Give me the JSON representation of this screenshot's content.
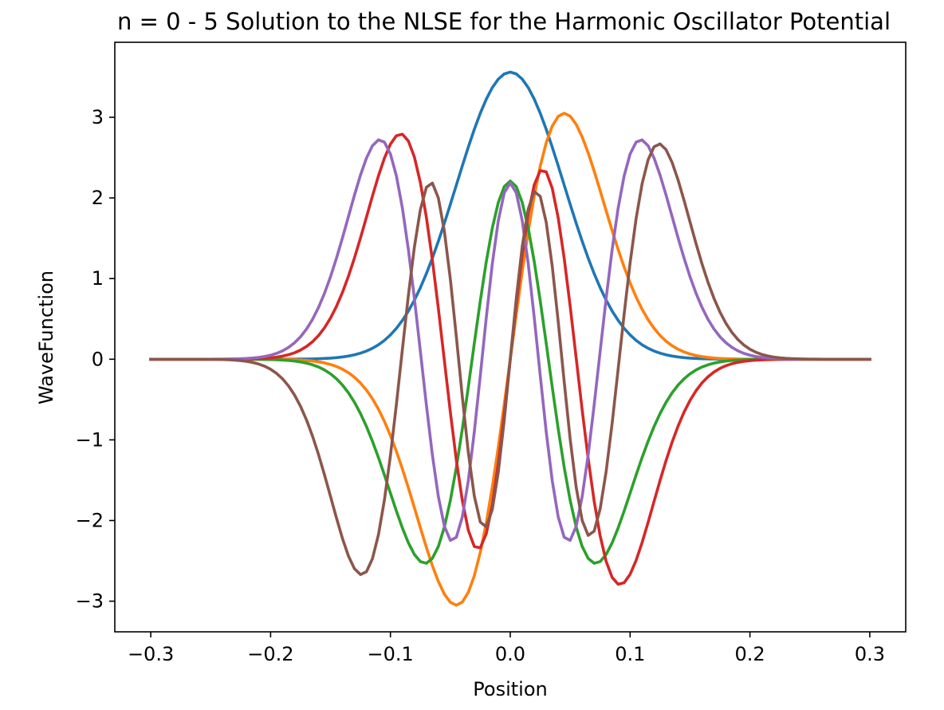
{
  "chart_data": {
    "type": "line",
    "title": "n = 0 - 5 Solution to the NLSE for the Harmonic Oscillator Potential",
    "xlabel": "Position",
    "ylabel": "WaveFunction",
    "xlim": [
      -0.33,
      0.33
    ],
    "ylim": [
      -3.38,
      3.93
    ],
    "xticks": [
      {
        "value": -0.3,
        "label": "−0.3"
      },
      {
        "value": -0.2,
        "label": "−0.2"
      },
      {
        "value": -0.1,
        "label": "−0.1"
      },
      {
        "value": 0.0,
        "label": "0.0"
      },
      {
        "value": 0.1,
        "label": "0.1"
      },
      {
        "value": 0.2,
        "label": "0.2"
      },
      {
        "value": 0.3,
        "label": "0.3"
      }
    ],
    "yticks": [
      {
        "value": -3,
        "label": "−3"
      },
      {
        "value": -2,
        "label": "−2"
      },
      {
        "value": -1,
        "label": "−1"
      },
      {
        "value": 0,
        "label": "0"
      },
      {
        "value": 1,
        "label": "1"
      },
      {
        "value": 2,
        "label": "2"
      },
      {
        "value": 3,
        "label": "3"
      }
    ],
    "grid": false,
    "legend": "none",
    "x_range": [
      -0.3,
      0.3
    ],
    "points_per_series": 121,
    "series": [
      {
        "n": 0,
        "color": "#1f77b4",
        "peak": 3.56,
        "sign": 1
      },
      {
        "n": 1,
        "color": "#ff7f0e",
        "peak": 3.05,
        "sign": 1
      },
      {
        "n": 2,
        "color": "#2ca02c",
        "peak": 2.53,
        "sign": -1
      },
      {
        "n": 3,
        "color": "#d62728",
        "peak": 2.79,
        "sign": -1
      },
      {
        "n": 4,
        "color": "#9467bd",
        "peak": 2.72,
        "sign": 1
      },
      {
        "n": 5,
        "color": "#8c564b",
        "peak": 2.67,
        "sign": 1
      }
    ]
  }
}
